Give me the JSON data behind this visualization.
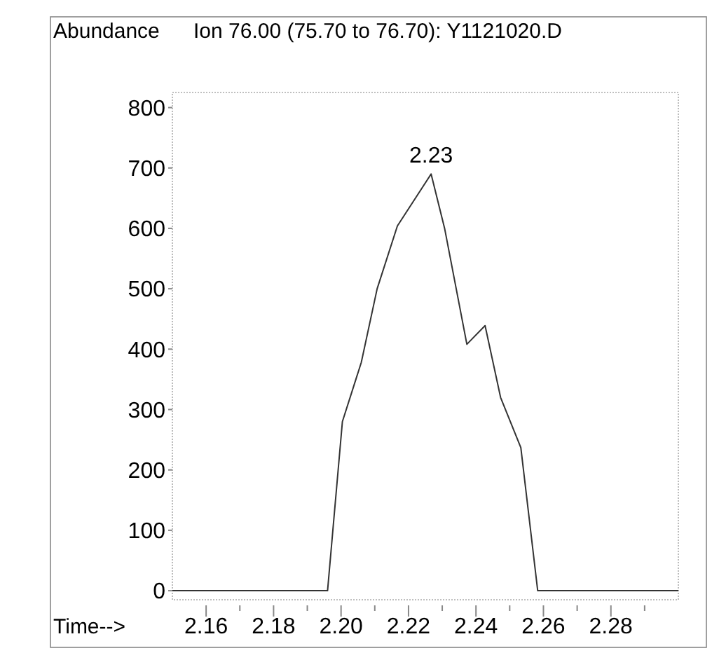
{
  "chart_data": {
    "type": "line",
    "title": "Ion  76.00 (75.70 to 76.70): Y1121020.D",
    "ylabel": "Abundance",
    "xlabel": "Time-->",
    "x": [
      2.15,
      2.196,
      2.2004,
      2.206,
      2.2107,
      2.2167,
      2.2267,
      2.2307,
      2.2373,
      2.2427,
      2.2473,
      2.2533,
      2.2583,
      2.3
    ],
    "series": [
      {
        "color": "#333333",
        "values": [
          0,
          0,
          280,
          378,
          500,
          604,
          690,
          600,
          408,
          439,
          320,
          237,
          0,
          0
        ]
      }
    ],
    "annotations": [
      {
        "text": "2.23",
        "x": 2.2267,
        "y": 690
      }
    ],
    "xlim": [
      2.15,
      2.3
    ],
    "ylim": [
      -15,
      825
    ],
    "xticks": [
      {
        "value": 2.16,
        "label": "2.16"
      },
      {
        "value": 2.18,
        "label": "2.18"
      },
      {
        "value": 2.2,
        "label": "2.20"
      },
      {
        "value": 2.22,
        "label": "2.22"
      },
      {
        "value": 2.24,
        "label": "2.24"
      },
      {
        "value": 2.26,
        "label": "2.26"
      },
      {
        "value": 2.28,
        "label": "2.28"
      },
      {
        "value": 2.17,
        "label": null
      },
      {
        "value": 2.19,
        "label": null
      },
      {
        "value": 2.21,
        "label": null
      },
      {
        "value": 2.23,
        "label": null
      },
      {
        "value": 2.25,
        "label": null
      },
      {
        "value": 2.27,
        "label": null
      },
      {
        "value": 2.29,
        "label": null
      }
    ],
    "yticks": [
      0,
      100,
      200,
      300,
      400,
      500,
      600,
      700,
      800
    ],
    "line_style": "solid"
  }
}
